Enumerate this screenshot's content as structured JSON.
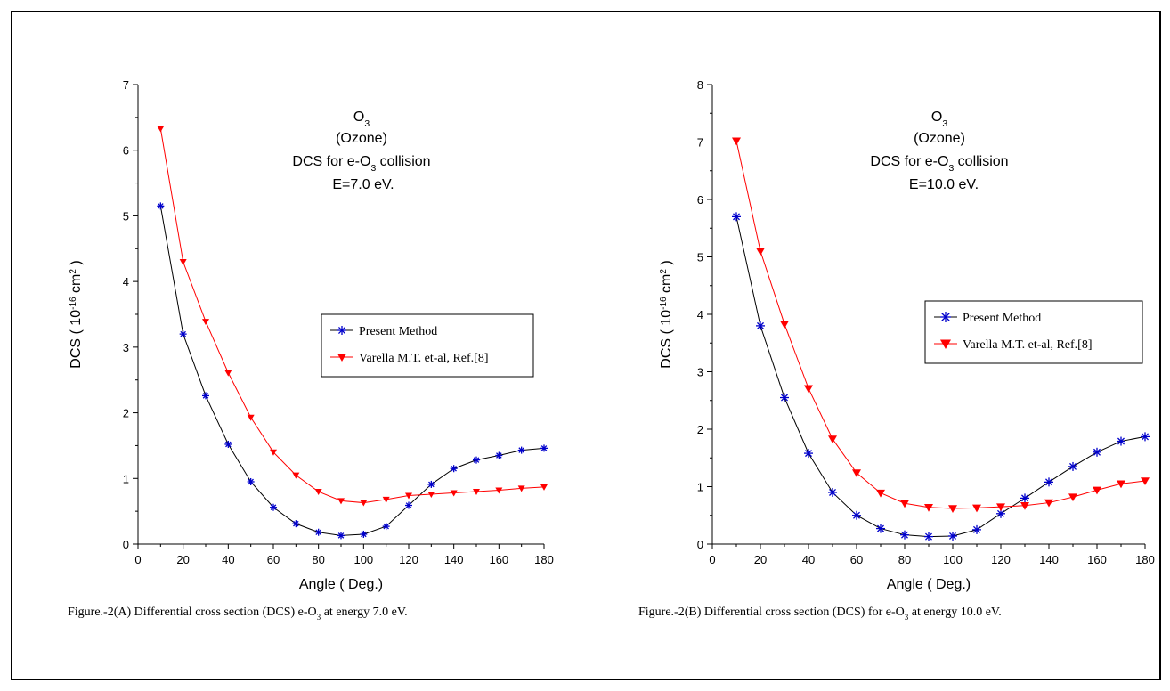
{
  "chart_data": [
    {
      "type": "line",
      "panel": "A",
      "title_lines": [
        "O3",
        "(Ozone)",
        "DCS for e-O3 collision",
        "E=7.0 eV."
      ],
      "xlabel": "Angle ( Deg.)",
      "ylabel": "DCS ( 10-16 cm2 )",
      "xlim": [
        0,
        180
      ],
      "ylim": [
        0,
        7
      ],
      "xticks": [
        0,
        20,
        40,
        60,
        80,
        100,
        120,
        140,
        160,
        180
      ],
      "yticks": [
        0,
        1,
        2,
        3,
        4,
        5,
        6,
        7
      ],
      "grid": false,
      "legend_position": "center-right",
      "x": [
        10,
        20,
        30,
        40,
        50,
        60,
        70,
        80,
        90,
        100,
        110,
        120,
        130,
        140,
        150,
        160,
        170,
        180
      ],
      "series": [
        {
          "name": "Present Method",
          "color": "#0000cc",
          "line_color": "#000000",
          "marker": "star",
          "values": [
            5.15,
            3.2,
            2.26,
            1.52,
            0.95,
            0.56,
            0.31,
            0.18,
            0.13,
            0.15,
            0.27,
            0.59,
            0.91,
            1.15,
            1.28,
            1.35,
            1.43,
            1.46
          ]
        },
        {
          "name": "Varella M.T. et-al, Ref.[8]",
          "color": "#ff0000",
          "line_color": "#ff0000",
          "marker": "triangle-down",
          "values": [
            6.33,
            4.3,
            3.39,
            2.61,
            1.93,
            1.4,
            1.05,
            0.8,
            0.66,
            0.63,
            0.68,
            0.74,
            0.76,
            0.78,
            0.8,
            0.82,
            0.85,
            0.87
          ]
        }
      ],
      "caption_parts": [
        "Figure.-2(A) Differential cross section (DCS) e-O",
        "3",
        " at energy 7.0 eV."
      ]
    },
    {
      "type": "line",
      "panel": "B",
      "title_lines": [
        "O3",
        "(Ozone)",
        "DCS for e-O3 collision",
        "E=10.0 eV."
      ],
      "xlabel": "Angle ( Deg.)",
      "ylabel": "DCS ( 10-16 cm2 )",
      "xlim": [
        0,
        180
      ],
      "ylim": [
        0,
        8
      ],
      "xticks": [
        0,
        20,
        40,
        60,
        80,
        100,
        120,
        140,
        160,
        180
      ],
      "yticks": [
        0,
        1,
        2,
        3,
        4,
        5,
        6,
        7,
        8
      ],
      "grid": false,
      "legend_position": "center-right",
      "x": [
        10,
        20,
        30,
        40,
        50,
        60,
        70,
        80,
        90,
        100,
        110,
        120,
        130,
        140,
        150,
        160,
        170,
        180
      ],
      "series": [
        {
          "name": "Present Method",
          "color": "#0000cc",
          "line_color": "#000000",
          "marker": "star",
          "values": [
            5.7,
            3.8,
            2.55,
            1.58,
            0.9,
            0.5,
            0.27,
            0.16,
            0.13,
            0.14,
            0.25,
            0.53,
            0.8,
            1.08,
            1.35,
            1.6,
            1.79,
            1.87
          ]
        },
        {
          "name": "Varella M.T. et-al, Ref.[8]",
          "color": "#ff0000",
          "line_color": "#ff0000",
          "marker": "triangle-down",
          "values": [
            7.02,
            5.1,
            3.83,
            2.71,
            1.83,
            1.24,
            0.89,
            0.71,
            0.64,
            0.62,
            0.63,
            0.65,
            0.67,
            0.72,
            0.82,
            0.94,
            1.05,
            1.1
          ]
        }
      ],
      "caption_parts": [
        "Figure.-2(B)  Differential cross section (DCS) for e-O",
        "3",
        " at energy 10.0 eV."
      ]
    }
  ]
}
